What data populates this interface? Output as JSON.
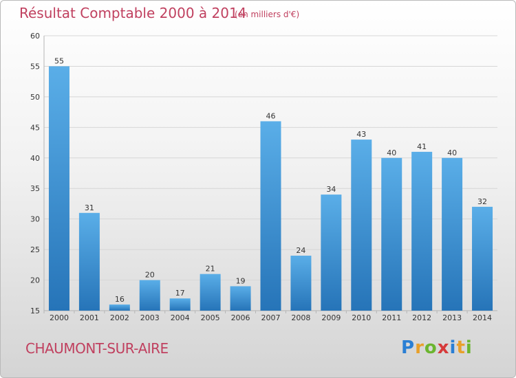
{
  "header": {
    "title": "Résultat Comptable 2000 à 2014",
    "subtitle": "(en milliers d'€)"
  },
  "footer": {
    "location": "CHAUMONT-SUR-AIRE",
    "logo_letters": [
      {
        "char": "P",
        "color": "#2a7fd4"
      },
      {
        "char": "r",
        "color": "#e8a02a"
      },
      {
        "char": "o",
        "color": "#6bb52f"
      },
      {
        "char": "x",
        "color": "#d63a3a"
      },
      {
        "char": "i",
        "color": "#2a7fd4"
      },
      {
        "char": "t",
        "color": "#e8a02a"
      },
      {
        "char": "i",
        "color": "#6bb52f"
      }
    ]
  },
  "chart_data": {
    "type": "bar",
    "title": "Résultat Comptable 2000 à 2014",
    "subtitle": "(en milliers d'€)",
    "categories": [
      "2000",
      "2001",
      "2002",
      "2003",
      "2004",
      "2005",
      "2006",
      "2007",
      "2008",
      "2009",
      "2010",
      "2011",
      "2012",
      "2013",
      "2014"
    ],
    "values": [
      55,
      31,
      16,
      20,
      17,
      21,
      19,
      46,
      24,
      34,
      43,
      40,
      41,
      40,
      32
    ],
    "ylim": [
      15,
      60
    ],
    "yticks": [
      15,
      20,
      25,
      30,
      35,
      40,
      45,
      50,
      55,
      60
    ],
    "grid": true,
    "bar_color": "#3d8fd4",
    "xlabel": "",
    "ylabel": ""
  }
}
